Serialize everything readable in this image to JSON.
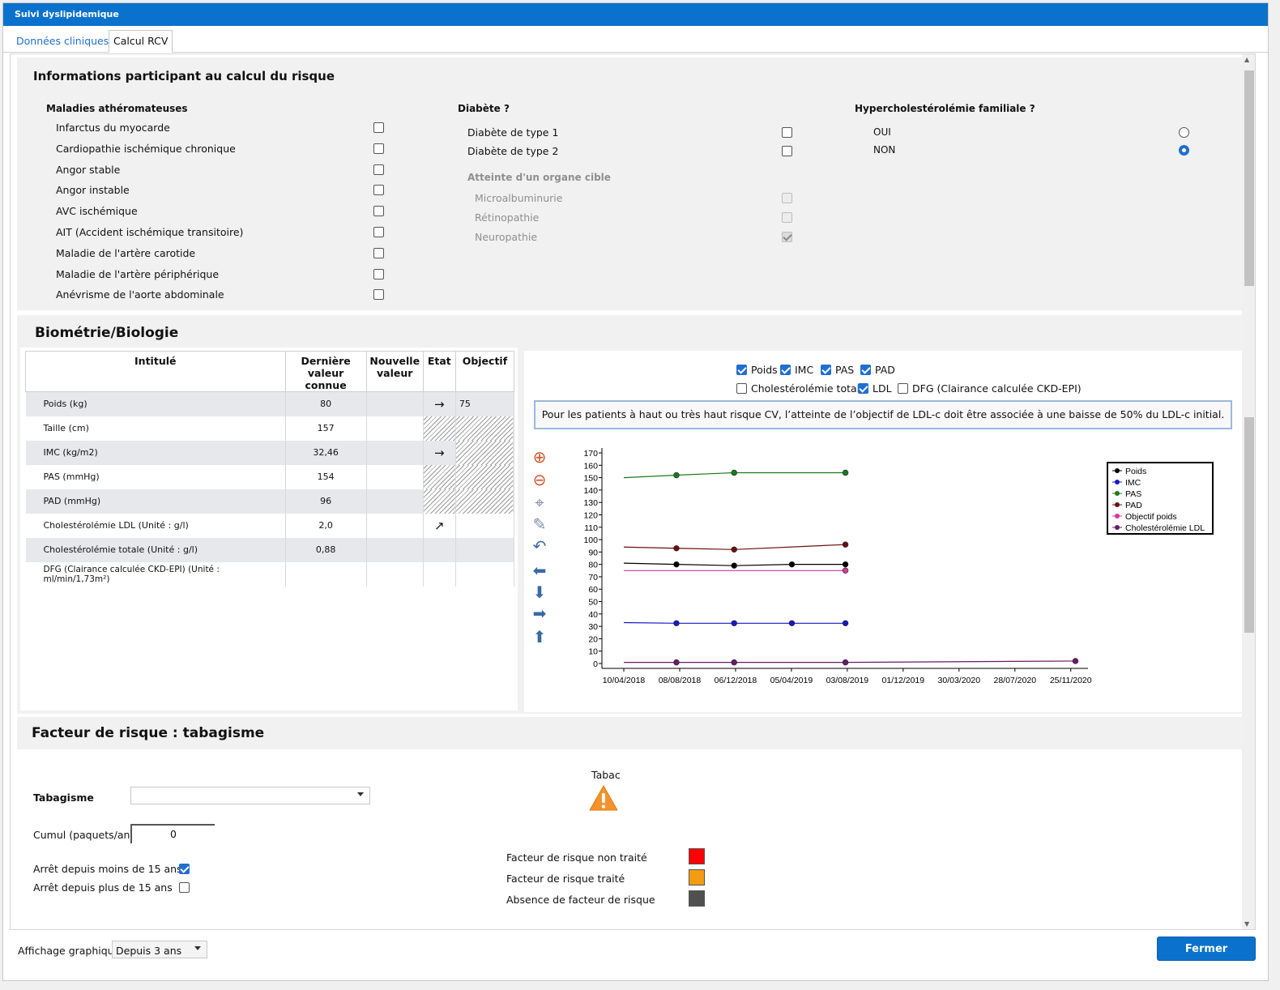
{
  "window": {
    "title": "Suivi dyslipidemique"
  },
  "tabs": [
    "Données cliniques",
    "Calcul RCV"
  ],
  "risk_info": {
    "title": "Informations participant au calcul du risque",
    "athero": {
      "title": "Maladies athéromateuses",
      "items": [
        {
          "label": "Infarctus du myocarde",
          "checked": false
        },
        {
          "label": "Cardiopathie ischémique chronique",
          "checked": false
        },
        {
          "label": "Angor stable",
          "checked": false
        },
        {
          "label": "Angor instable",
          "checked": false
        },
        {
          "label": "AVC ischémique",
          "checked": false
        },
        {
          "label": "AIT (Accident ischémique transitoire)",
          "checked": false
        },
        {
          "label": "Maladie de l'artère carotide",
          "checked": false
        },
        {
          "label": "Maladie de l'artère périphérique",
          "checked": false
        },
        {
          "label": "Anévrisme de l'aorte abdominale",
          "checked": false
        }
      ]
    },
    "diabete": {
      "title": "Diabète ?",
      "items": [
        {
          "label": "Diabète de type 1",
          "checked": false
        },
        {
          "label": "Diabète de type 2",
          "checked": false
        }
      ],
      "organe_title": "Atteinte d'un organe cible",
      "organe_items": [
        {
          "label": "Microalbuminurie",
          "checked": false
        },
        {
          "label": "Rétinopathie",
          "checked": false
        },
        {
          "label": "Neuropathie",
          "checked": true
        }
      ]
    },
    "hyperchol": {
      "title": "Hypercholestérolémie familiale ?",
      "options": [
        {
          "label": "OUI",
          "selected": false
        },
        {
          "label": "NON",
          "selected": true
        }
      ]
    }
  },
  "biometrie": {
    "title": "Biométrie/Biologie",
    "headers": [
      "Intitulé",
      "Dernière valeur connue",
      "Nouvelle valeur",
      "Etat",
      "Objectif"
    ],
    "rows": [
      {
        "label": "Poids (kg)",
        "last": "80",
        "new": "",
        "etat": "→",
        "objectif": "75"
      },
      {
        "label": "Taille (cm)",
        "last": "157",
        "new": "",
        "etat": "",
        "objectif": ""
      },
      {
        "label": "IMC (kg/m2)",
        "last": "32,46",
        "new": "",
        "etat": "→",
        "objectif": ""
      },
      {
        "label": "PAS (mmHg)",
        "last": "154",
        "new": "",
        "etat": "",
        "objectif": ""
      },
      {
        "label": "PAD (mmHg)",
        "last": "96",
        "new": "",
        "etat": "",
        "objectif": ""
      },
      {
        "label": "Cholestérolémie LDL (Unité : g/l)",
        "last": "2,0",
        "new": "",
        "etat": "↗",
        "objectif": ""
      },
      {
        "label": "Cholestérolémie totale (Unité : g/l)",
        "last": "0,88",
        "new": "",
        "etat": "",
        "objectif": ""
      },
      {
        "label": "DFG (Clairance calculée CKD-EPI) (Unité : ml/min/1,73m²)",
        "last": "",
        "new": "",
        "etat": "",
        "objectif": ""
      }
    ],
    "filters": [
      {
        "label": "Poids",
        "checked": true
      },
      {
        "label": "IMC",
        "checked": true
      },
      {
        "label": "PAS",
        "checked": true
      },
      {
        "label": "PAD",
        "checked": true
      },
      {
        "label": "Cholestérolémie totale",
        "checked": false
      },
      {
        "label": "LDL",
        "checked": true
      },
      {
        "label": "DFG (Clairance calculée CKD-EPI)",
        "checked": false
      }
    ],
    "note": "Pour les patients à haut ou très haut risque CV, l’atteinte de l’objectif de LDL-c doit être associée à une baisse de 50% du LDL-c initial.",
    "tools": [
      "zoom-in-icon",
      "zoom-out-icon",
      "target-icon",
      "pin-icon",
      "undo-icon",
      "arrow-left-icon",
      "arrow-down-icon",
      "arrow-right-icon",
      "arrow-up-icon"
    ]
  },
  "chart_data": {
    "type": "line",
    "x_ticks": [
      "10/04/2018",
      "08/08/2018",
      "06/12/2018",
      "05/04/2019",
      "03/08/2019",
      "01/12/2019",
      "30/03/2020",
      "28/07/2020",
      "25/11/2020"
    ],
    "ylim": [
      0,
      170
    ],
    "y_ticks": [
      0,
      10,
      20,
      30,
      40,
      50,
      60,
      70,
      80,
      90,
      100,
      110,
      120,
      130,
      140,
      150,
      160,
      170
    ],
    "legend_position": "top-right",
    "series": [
      {
        "name": "Poids",
        "color": "#000000",
        "points": [
          [
            "10/04/2018",
            81
          ],
          [
            "01/08/2018",
            80
          ],
          [
            "03/12/2018",
            79
          ],
          [
            "06/04/2019",
            80
          ],
          [
            "30/07/2019",
            80
          ]
        ],
        "markers": [
          1,
          2,
          3,
          4
        ]
      },
      {
        "name": "IMC",
        "color": "#1818c8",
        "points": [
          [
            "10/04/2018",
            33
          ],
          [
            "01/08/2018",
            32.5
          ],
          [
            "03/12/2018",
            32.5
          ],
          [
            "06/04/2019",
            32.5
          ],
          [
            "30/07/2019",
            32.5
          ]
        ],
        "markers": [
          1,
          2,
          3,
          4
        ]
      },
      {
        "name": "PAS",
        "color": "#1a7a1a",
        "points": [
          [
            "10/04/2018",
            150
          ],
          [
            "01/08/2018",
            152
          ],
          [
            "03/12/2018",
            154
          ],
          [
            "30/07/2019",
            154
          ]
        ],
        "markers": [
          1,
          2,
          3
        ]
      },
      {
        "name": "PAD",
        "color": "#6a1010",
        "points": [
          [
            "10/04/2018",
            94
          ],
          [
            "01/08/2018",
            93
          ],
          [
            "03/12/2018",
            92
          ],
          [
            "30/07/2019",
            96
          ]
        ],
        "markers": [
          1,
          2,
          3
        ]
      },
      {
        "name": "Objectif poids",
        "color": "#d6389a",
        "points": [
          [
            "10/04/2018",
            75
          ],
          [
            "30/07/2019",
            75
          ]
        ],
        "markers": [
          1
        ]
      },
      {
        "name": "Cholestérolémie LDL",
        "color": "#6a1a6a",
        "points": [
          [
            "10/04/2018",
            0.9
          ],
          [
            "01/08/2018",
            0.9
          ],
          [
            "03/12/2018",
            0.9
          ],
          [
            "30/07/2019",
            0.9
          ],
          [
            "05/12/2020",
            2.0
          ]
        ],
        "markers": [
          1,
          2,
          3,
          4
        ]
      }
    ]
  },
  "tabac": {
    "title": "Facteur de risque : tabagisme",
    "tabagisme_label": "Tabagisme",
    "tabagisme_value": "",
    "cumul_label": "Cumul (paquets/an)",
    "cumul_value": "0",
    "arret1_label": "Arrêt depuis moins de 15 ans",
    "arret1_checked": true,
    "arret2_label": "Arrêt depuis plus de 15 ans",
    "arret2_checked": false,
    "icon_title": "Tabac",
    "legend": [
      {
        "label": "Facteur de risque non traité",
        "color": "#ff0000"
      },
      {
        "label": "Facteur de risque traité",
        "color": "#f39c12"
      },
      {
        "label": "Absence de facteur de risque",
        "color": "#505050"
      }
    ]
  },
  "footer": {
    "affichage_label": "Affichage graphique",
    "affichage_value": "Depuis 3 ans",
    "close_label": "Fermer"
  }
}
